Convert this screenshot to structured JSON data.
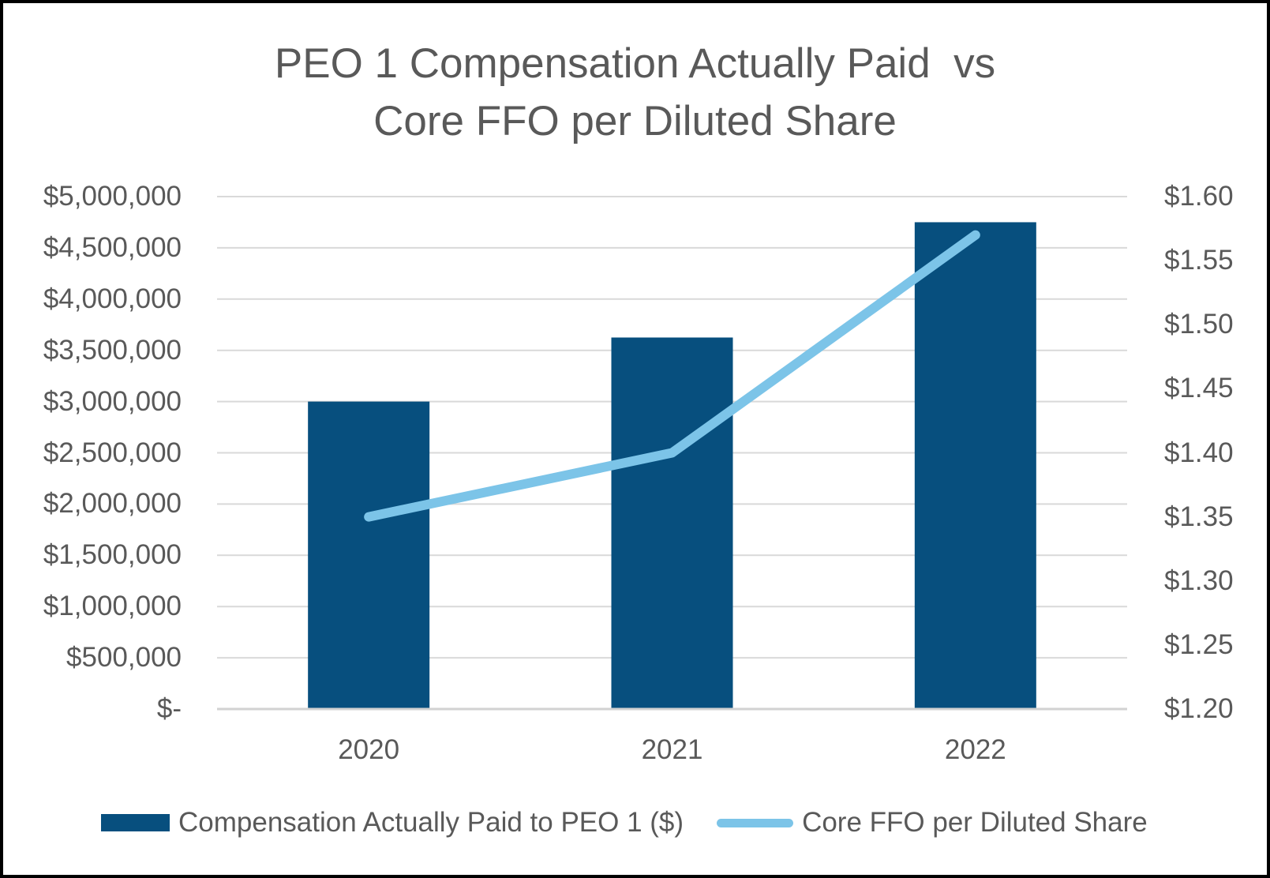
{
  "chart": {
    "title_line1": "PEO 1 Compensation Actually Paid  vs",
    "title_line2": "Core FFO per Diluted Share"
  },
  "chart_data": {
    "type": "combo-bar-line",
    "title": "PEO 1 Compensation Actually Paid  vs Core FFO per Diluted Share",
    "categories": [
      "2020",
      "2021",
      "2022"
    ],
    "series": [
      {
        "name": "Compensation Actually Paid to PEO 1 ($)",
        "type": "bar",
        "axis": "left",
        "values": [
          3000000,
          3625000,
          4750000
        ],
        "color": "#074F7E"
      },
      {
        "name": "Core FFO per Diluted Share",
        "type": "line",
        "axis": "right",
        "values": [
          1.35,
          1.4,
          1.57
        ],
        "color": "#7CC4E8"
      }
    ],
    "left_axis": {
      "min": 0,
      "max": 5000000,
      "step": 500000,
      "tick_labels": [
        "$-",
        "$500,000",
        "$1,000,000",
        "$1,500,000",
        "$2,000,000",
        "$2,500,000",
        "$3,000,000",
        "$3,500,000",
        "$4,000,000",
        "$4,500,000",
        "$5,000,000"
      ]
    },
    "right_axis": {
      "min": 1.2,
      "max": 1.6,
      "step": 0.05,
      "tick_labels": [
        "$1.20",
        "$1.25",
        "$1.30",
        "$1.35",
        "$1.40",
        "$1.45",
        "$1.50",
        "$1.55",
        "$1.60"
      ]
    },
    "grid": "horizontal",
    "legend_position": "bottom",
    "colors": {
      "bar": "#074F7E",
      "line": "#7CC4E8",
      "gridline": "#D9D9D9",
      "axis_line": "#D2D2D2",
      "text": "#595959"
    }
  }
}
